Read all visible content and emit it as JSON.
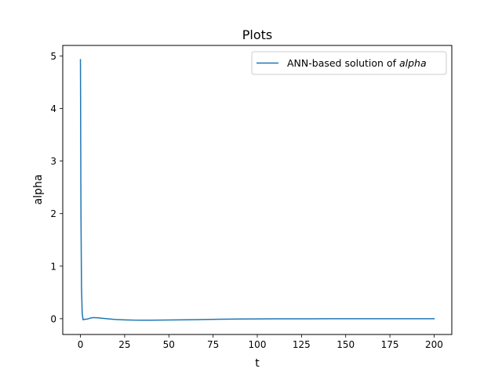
{
  "chart_data": {
    "type": "line",
    "title": "Plots",
    "xlabel": "t",
    "ylabel": "alpha",
    "xlim": [
      -10,
      210
    ],
    "ylim": [
      -0.3,
      5.2
    ],
    "xticks": [
      0,
      25,
      50,
      75,
      100,
      125,
      150,
      175,
      200
    ],
    "yticks": [
      0,
      1,
      2,
      3,
      4,
      5
    ],
    "xtick_labels": [
      "0",
      "25",
      "50",
      "75",
      "100",
      "125",
      "150",
      "175",
      "200"
    ],
    "ytick_labels": [
      "0",
      "1",
      "2",
      "3",
      "4",
      "5"
    ],
    "grid": false,
    "legend": {
      "placement": "upper right",
      "prefix": "ANN-based solution of ",
      "math": "alpha"
    },
    "series": [
      {
        "name": "ANN-based solution of alpha",
        "color": "#1f77b4",
        "x": [
          0,
          0.3,
          0.6,
          1,
          1.5,
          2,
          3,
          4,
          5,
          6,
          7,
          8,
          9,
          10,
          12,
          15,
          18,
          20,
          25,
          30,
          35,
          40,
          45,
          50,
          60,
          70,
          80,
          90,
          100,
          110,
          120,
          130,
          140,
          150,
          160,
          170,
          180,
          190,
          200
        ],
        "y": [
          4.93,
          2.0,
          0.6,
          0.1,
          -0.02,
          -0.015,
          -0.01,
          -0.005,
          0.005,
          0.015,
          0.02,
          0.02,
          0.018,
          0.016,
          0.01,
          0.0,
          -0.01,
          -0.015,
          -0.022,
          -0.027,
          -0.028,
          -0.028,
          -0.027,
          -0.025,
          -0.02,
          -0.015,
          -0.01,
          -0.006,
          -0.003,
          -0.002,
          -0.001,
          -0.001,
          0.0,
          0.0,
          0.0,
          0.0,
          0.0,
          0.0,
          0.0
        ]
      }
    ]
  }
}
